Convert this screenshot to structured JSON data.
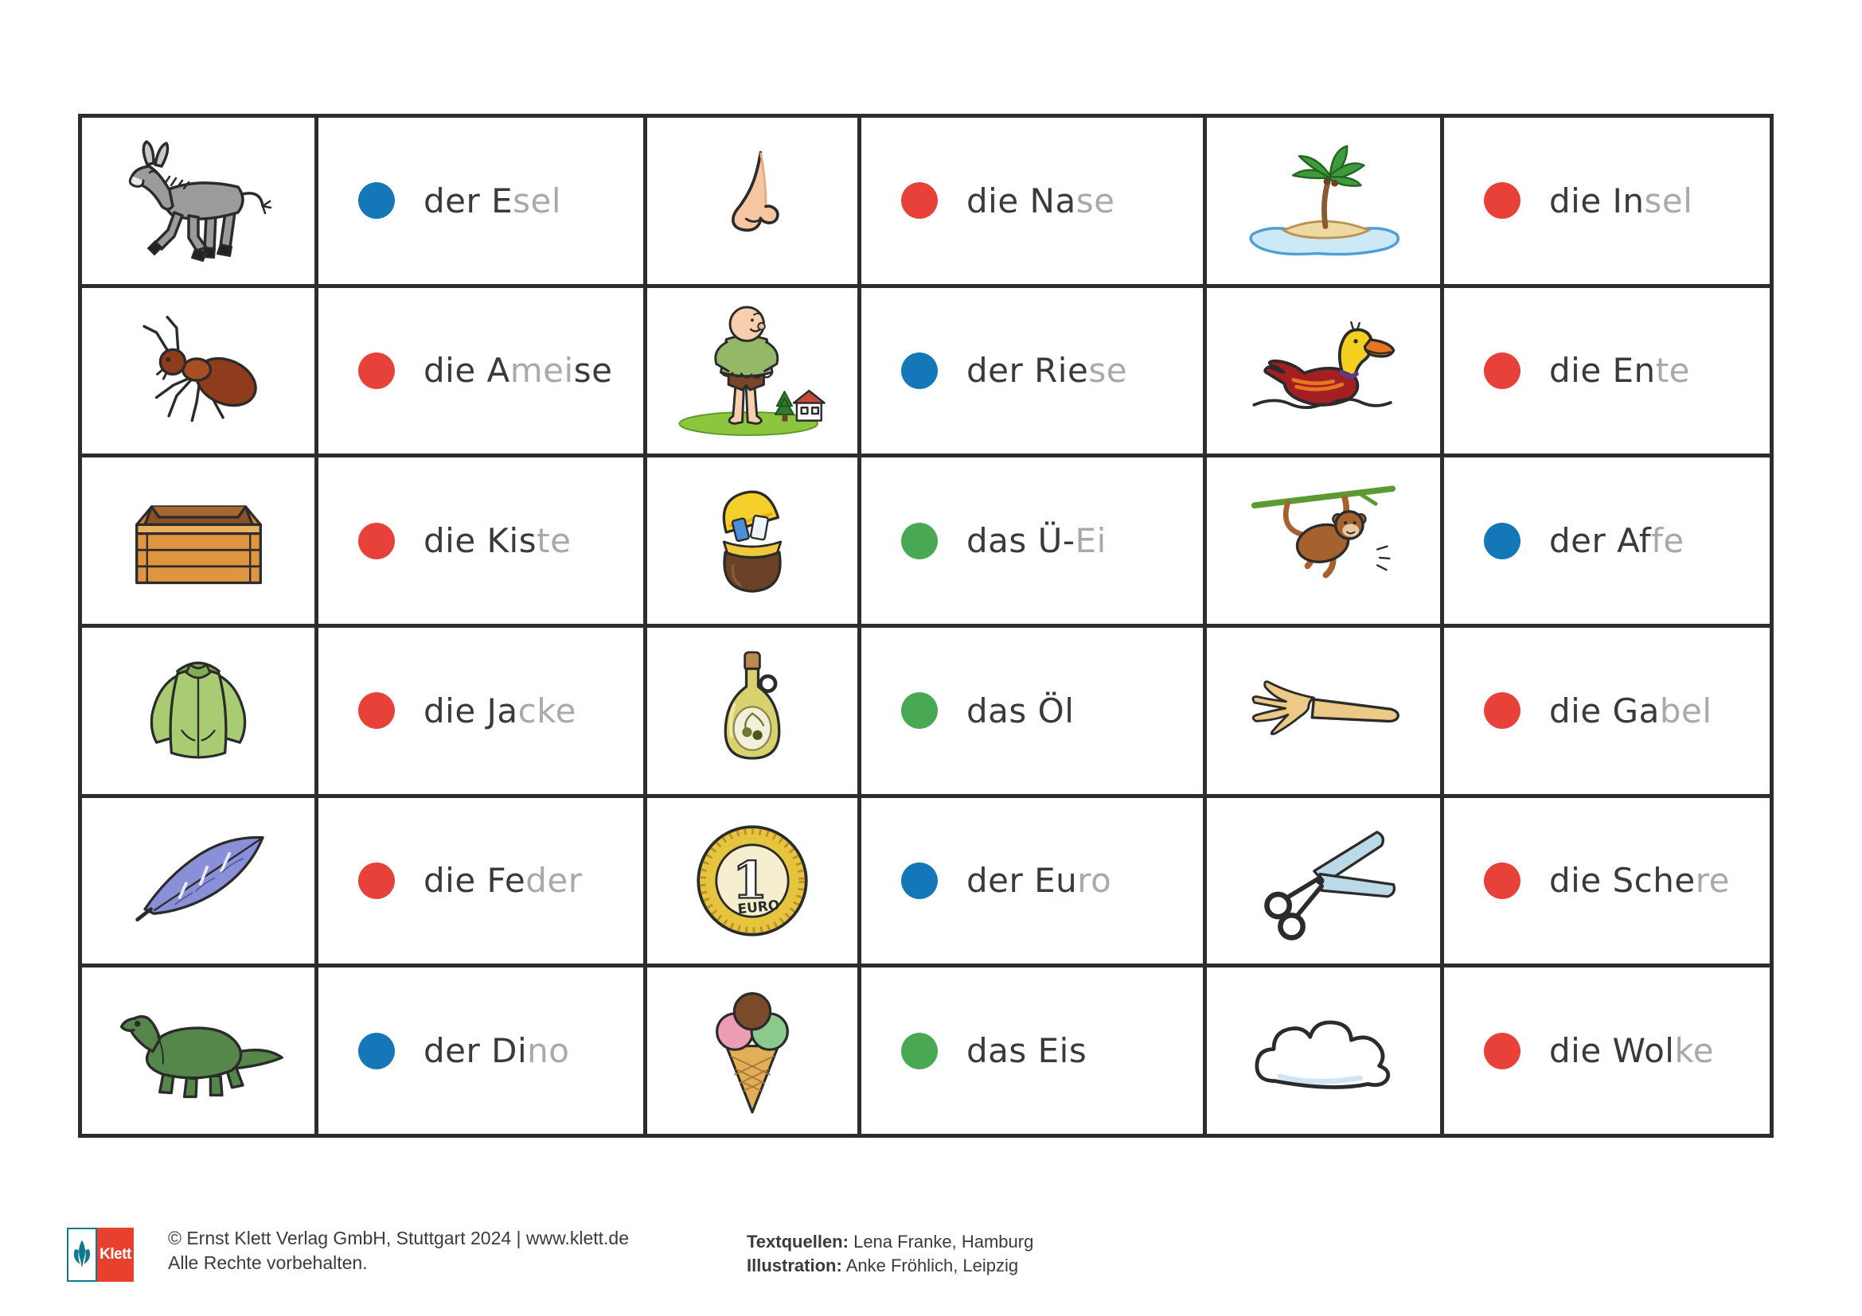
{
  "colors": {
    "grid_border": "#2d2d2d",
    "text_dark": "#3a3a3a",
    "text_gray": "#a9a9a9"
  },
  "dot_colors": {
    "blue": "#1477b8",
    "red": "#e8413a",
    "green": "#48a854"
  },
  "grid": {
    "rows": [
      {
        "cells": [
          {
            "type": "image",
            "icon": "donkey"
          },
          {
            "type": "word",
            "dot": "blue",
            "parts": [
              {
                "t": "der E",
                "c": "dark"
              },
              {
                "t": "sel",
                "c": "gray"
              }
            ]
          },
          {
            "type": "image",
            "icon": "nose"
          },
          {
            "type": "word",
            "dot": "red",
            "parts": [
              {
                "t": "die Na",
                "c": "dark"
              },
              {
                "t": "se",
                "c": "gray"
              }
            ]
          },
          {
            "type": "image",
            "icon": "island"
          },
          {
            "type": "word",
            "dot": "red",
            "parts": [
              {
                "t": "die In",
                "c": "dark"
              },
              {
                "t": "sel",
                "c": "gray"
              }
            ]
          }
        ]
      },
      {
        "cells": [
          {
            "type": "image",
            "icon": "ant"
          },
          {
            "type": "word",
            "dot": "red",
            "parts": [
              {
                "t": "die A",
                "c": "dark"
              },
              {
                "t": "mei",
                "c": "gray"
              },
              {
                "t": "se",
                "c": "dark"
              }
            ]
          },
          {
            "type": "image",
            "icon": "giant"
          },
          {
            "type": "word",
            "dot": "blue",
            "parts": [
              {
                "t": "der Rie",
                "c": "dark"
              },
              {
                "t": "se",
                "c": "gray"
              }
            ]
          },
          {
            "type": "image",
            "icon": "duck"
          },
          {
            "type": "word",
            "dot": "red",
            "parts": [
              {
                "t": "die En",
                "c": "dark"
              },
              {
                "t": "te",
                "c": "gray"
              }
            ]
          }
        ]
      },
      {
        "cells": [
          {
            "type": "image",
            "icon": "crate"
          },
          {
            "type": "word",
            "dot": "red",
            "parts": [
              {
                "t": "die Kis",
                "c": "dark"
              },
              {
                "t": "te",
                "c": "gray"
              }
            ]
          },
          {
            "type": "image",
            "icon": "surprise-egg"
          },
          {
            "type": "word",
            "dot": "green",
            "parts": [
              {
                "t": "das Ü-",
                "c": "dark"
              },
              {
                "t": "Ei",
                "c": "gray"
              }
            ]
          },
          {
            "type": "image",
            "icon": "monkey"
          },
          {
            "type": "word",
            "dot": "blue",
            "parts": [
              {
                "t": "der Af",
                "c": "dark"
              },
              {
                "t": "fe",
                "c": "gray"
              }
            ]
          }
        ]
      },
      {
        "cells": [
          {
            "type": "image",
            "icon": "jacket"
          },
          {
            "type": "word",
            "dot": "red",
            "parts": [
              {
                "t": "die Ja",
                "c": "dark"
              },
              {
                "t": "cke",
                "c": "gray"
              }
            ]
          },
          {
            "type": "image",
            "icon": "oil-bottle"
          },
          {
            "type": "word",
            "dot": "green",
            "parts": [
              {
                "t": "das Öl",
                "c": "dark"
              }
            ]
          },
          {
            "type": "image",
            "icon": "fork"
          },
          {
            "type": "word",
            "dot": "red",
            "parts": [
              {
                "t": "die Ga",
                "c": "dark"
              },
              {
                "t": "bel",
                "c": "gray"
              }
            ]
          }
        ]
      },
      {
        "cells": [
          {
            "type": "image",
            "icon": "feather"
          },
          {
            "type": "word",
            "dot": "red",
            "parts": [
              {
                "t": "die Fe",
                "c": "dark"
              },
              {
                "t": "der",
                "c": "gray"
              }
            ]
          },
          {
            "type": "image",
            "icon": "euro-coin"
          },
          {
            "type": "word",
            "dot": "blue",
            "parts": [
              {
                "t": "der Eu",
                "c": "dark"
              },
              {
                "t": "ro",
                "c": "gray"
              }
            ]
          },
          {
            "type": "image",
            "icon": "scissors"
          },
          {
            "type": "word",
            "dot": "red",
            "parts": [
              {
                "t": "die Sche",
                "c": "dark"
              },
              {
                "t": "re",
                "c": "gray"
              }
            ]
          }
        ]
      },
      {
        "cells": [
          {
            "type": "image",
            "icon": "dinosaur"
          },
          {
            "type": "word",
            "dot": "blue",
            "parts": [
              {
                "t": "der Di",
                "c": "dark"
              },
              {
                "t": "no",
                "c": "gray"
              }
            ]
          },
          {
            "type": "image",
            "icon": "ice-cream"
          },
          {
            "type": "word",
            "dot": "green",
            "parts": [
              {
                "t": "das Eis",
                "c": "dark"
              }
            ]
          },
          {
            "type": "image",
            "icon": "cloud"
          },
          {
            "type": "word",
            "dot": "red",
            "parts": [
              {
                "t": "die Wol",
                "c": "dark"
              },
              {
                "t": "ke",
                "c": "gray"
              }
            ]
          }
        ]
      }
    ]
  },
  "icons": {
    "euro_coin": {
      "number": "1",
      "word": "EURO"
    }
  },
  "footer": {
    "logo_text": "Klett",
    "copyright_line1": "© Ernst Klett Verlag GmbH, Stuttgart 2024 | www.klett.de",
    "copyright_line2": "Alle Rechte vorbehalten.",
    "credit1_label": "Textquellen:",
    "credit1_value": "Lena Franke, Hamburg",
    "credit2_label": "Illustration:",
    "credit2_value": "Anke Fröhlich, Leipzig"
  }
}
